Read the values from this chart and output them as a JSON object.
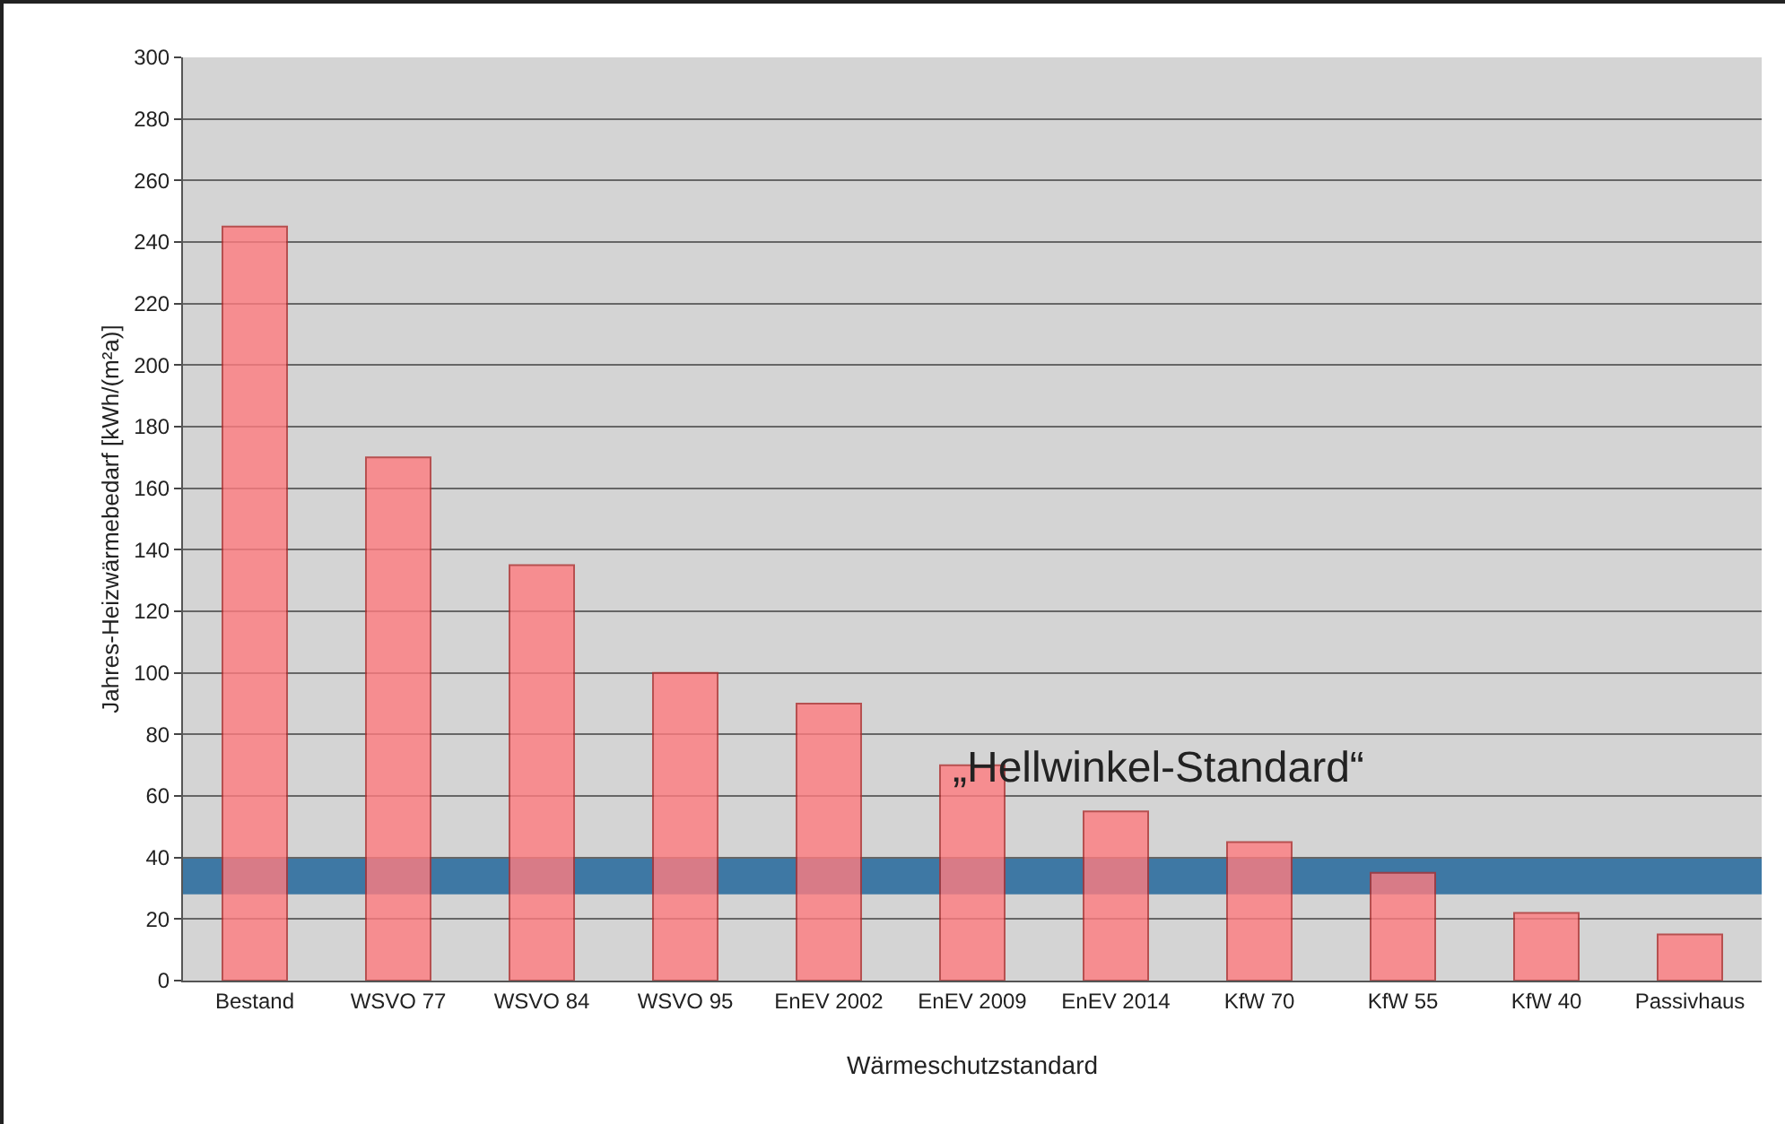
{
  "chart_data": {
    "type": "bar",
    "xlabel": "Wärmeschutzstandard",
    "ylabel": "Jahres-Heizwärmebedarf [kWh/(m²a)]",
    "categories": [
      "Bestand",
      "WSVO 77",
      "WSVO 84",
      "WSVO 95",
      "EnEV 2002",
      "EnEV 2009",
      "EnEV 2014",
      "KfW 70",
      "KfW 55",
      "KfW 40",
      "Passivhaus"
    ],
    "values": [
      245,
      170,
      135,
      100,
      90,
      70,
      55,
      45,
      35,
      22,
      15
    ],
    "color": "#ff7c80",
    "ylim": [
      0,
      300
    ],
    "yticks": [
      0,
      20,
      40,
      60,
      80,
      100,
      120,
      140,
      160,
      180,
      200,
      220,
      240,
      260,
      280,
      300
    ],
    "grid": "y",
    "bands": [
      {
        "axis": "y",
        "from": 28,
        "to": 40,
        "label": "„Hellwinkel-Standard“",
        "color": "#2e6e9e"
      }
    ]
  }
}
